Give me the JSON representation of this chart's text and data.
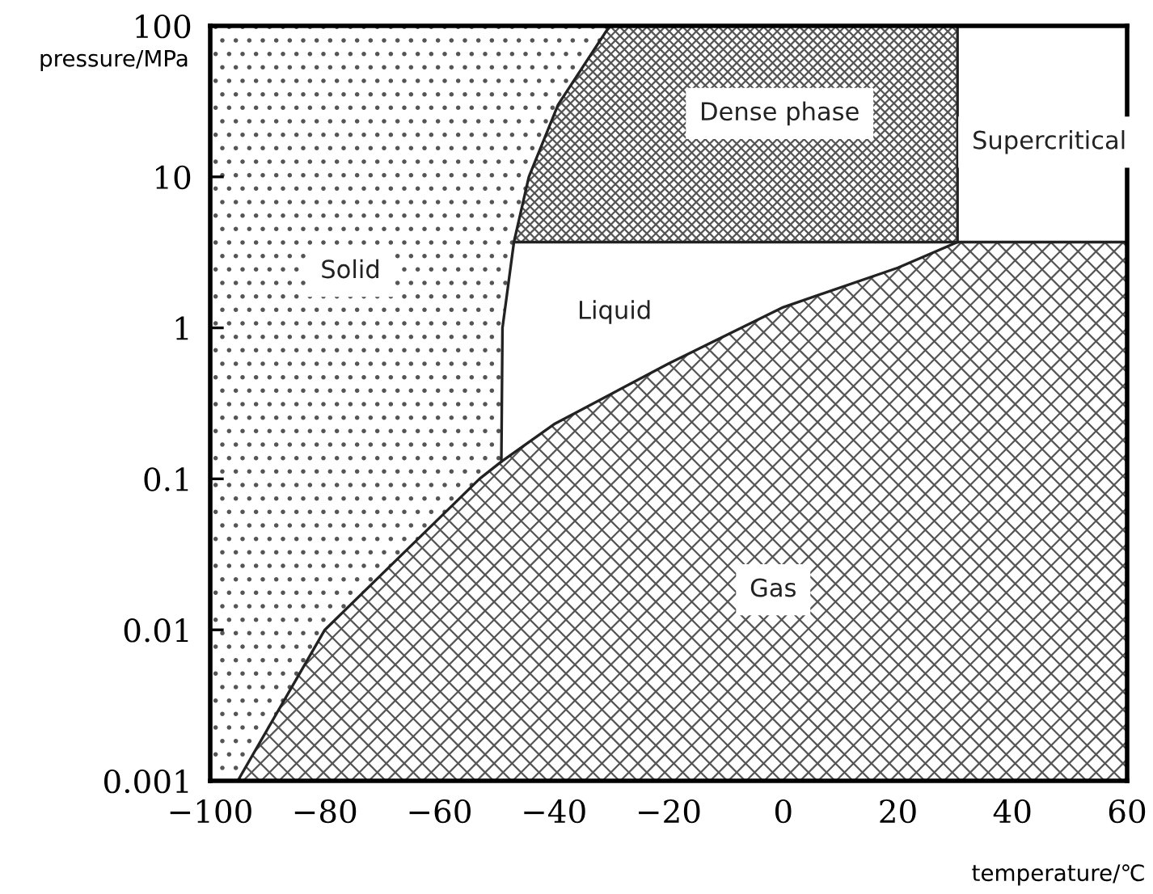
{
  "chart_data": {
    "type": "line",
    "xlabel": "temperature/℃",
    "ylabel": "pressure/MPa",
    "log": "y",
    "xlim": [
      -100,
      60
    ],
    "ylim": [
      0.001,
      100
    ],
    "xticks": [
      {
        "value": -100,
        "label": "−100"
      },
      {
        "value": -80,
        "label": "−80"
      },
      {
        "value": -60,
        "label": "−60"
      },
      {
        "value": -40,
        "label": "−40"
      },
      {
        "value": -20,
        "label": "−20"
      },
      0,
      20,
      40,
      60
    ],
    "yticks": [
      {
        "value": 0.001,
        "label": "0.001"
      },
      {
        "value": 0.01,
        "label": "0.01"
      },
      {
        "value": 0.1,
        "label": "0.1"
      },
      1,
      10,
      100
    ],
    "grid": false,
    "legend": false,
    "marker": "none",
    "line_style": "solid",
    "series": [
      {
        "type": "area",
        "color": "#222222",
        "x": [
          -95.2,
          -80,
          -53,
          -49.2,
          -40,
          -20,
          0,
          20,
          30.4,
          60
        ],
        "values": [
          0.001,
          0.01,
          0.1,
          0.13,
          0.23,
          0.58,
          1.37,
          2.5,
          3.7,
          3.7
        ]
      },
      {
        "color": "#222222",
        "x": [
          -49.2,
          -49,
          -47,
          -44.4,
          -39.3,
          -30.3
        ],
        "values": [
          0.13,
          1,
          3.7,
          10,
          30,
          100
        ]
      },
      {
        "color": "#222222",
        "x": [
          -47,
          30.4
        ],
        "values": [
          3.7,
          3.7
        ]
      },
      {
        "color": "#222222",
        "x": [
          30.4,
          30.4
        ],
        "values": [
          3.7,
          100
        ]
      }
    ],
    "annotations": [
      "Solid",
      "Liquid",
      "Dense phase",
      "Supercritical",
      "Gas"
    ]
  }
}
